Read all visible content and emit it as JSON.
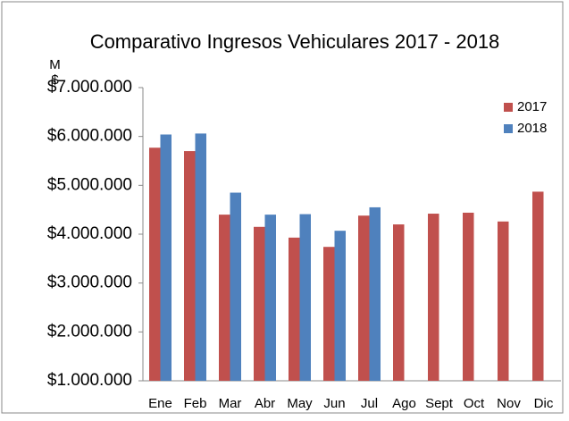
{
  "chart_data": {
    "type": "bar",
    "title": "Comparativo Ingresos Vehiculares 2017 - 2018",
    "y_label": "M$",
    "categories": [
      "Ene",
      "Feb",
      "Mar",
      "Abr",
      "May",
      "Jun",
      "Jul",
      "Ago",
      "Sept",
      "Oct",
      "Nov",
      "Dic"
    ],
    "series": [
      {
        "name": "2017",
        "color": "#c0504d",
        "values": [
          5770000,
          5700000,
          4400000,
          4150000,
          3930000,
          3740000,
          4380000,
          4200000,
          4420000,
          4440000,
          4260000,
          4870000
        ]
      },
      {
        "name": "2018",
        "color": "#4f81bd",
        "values": [
          6040000,
          6060000,
          4850000,
          4400000,
          4410000,
          4070000,
          4550000,
          null,
          null,
          null,
          null,
          null
        ]
      }
    ],
    "ylim": [
      1000000,
      7000000
    ],
    "yticks": [
      {
        "value": 1000000,
        "label": "$1.000.000"
      },
      {
        "value": 2000000,
        "label": "$2.000.000"
      },
      {
        "value": 3000000,
        "label": "$3.000.000"
      },
      {
        "value": 4000000,
        "label": "$4.000.000"
      },
      {
        "value": 5000000,
        "label": "$5.000.000"
      },
      {
        "value": 6000000,
        "label": "$6.000.000"
      },
      {
        "value": 7000000,
        "label": "$7.000.000"
      }
    ],
    "grid": false,
    "legend": "top-right"
  }
}
